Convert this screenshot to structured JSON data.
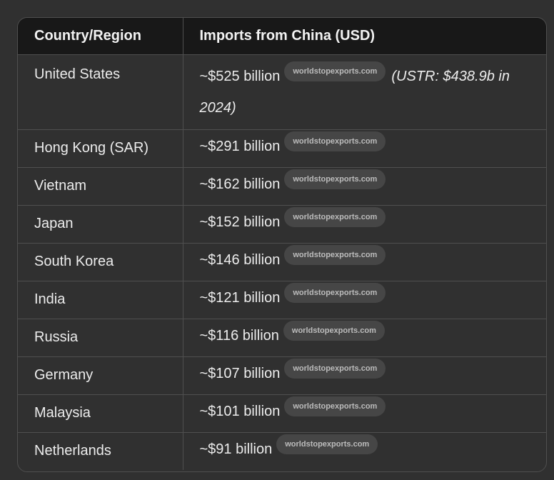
{
  "table": {
    "headers": [
      "Country/Region",
      "Imports from China (USD)"
    ],
    "rows": [
      {
        "country": "United States",
        "value": "~$525 billion",
        "source": "worldstopexports.com",
        "note": "(USTR: $438.9b in 2024)"
      },
      {
        "country": "Hong Kong (SAR)",
        "value": "~$291 billion",
        "source": "worldstopexports.com"
      },
      {
        "country": "Vietnam",
        "value": "~$162 billion",
        "source": "worldstopexports.com"
      },
      {
        "country": "Japan",
        "value": "~$152 billion",
        "source": "worldstopexports.com"
      },
      {
        "country": "South Korea",
        "value": "~$146 billion",
        "source": "worldstopexports.com"
      },
      {
        "country": "India",
        "value": "~$121 billion",
        "source": "worldstopexports.com"
      },
      {
        "country": "Russia",
        "value": "~$116 billion",
        "source": "worldstopexports.com"
      },
      {
        "country": "Germany",
        "value": "~$107 billion",
        "source": "worldstopexports.com"
      },
      {
        "country": "Malaysia",
        "value": "~$101 billion",
        "source": "worldstopexports.com"
      },
      {
        "country": "Netherlands",
        "value": "~$91 billion",
        "source": "worldstopexports.com"
      }
    ]
  }
}
